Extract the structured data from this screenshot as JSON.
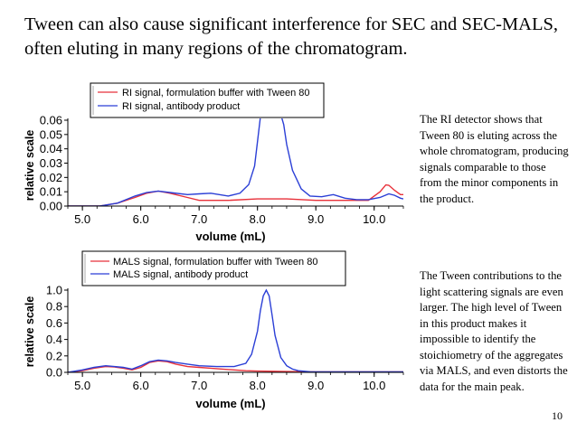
{
  "slide": {
    "title": "Tween can also cause significant interference for SEC and SEC-MALS, often eluting in many regions of the chromatogram.",
    "page_number": "10"
  },
  "notes": {
    "ri": "The RI detector shows that Tween 80 is eluting across the whole chromatogram, producing signals comparable to those from the minor components in the product.",
    "mals": "The Tween contributions to the light scattering signals are even larger. The high level of Tween in this product makes it impossible to identify the stoichiometry of the aggregates via MALS, and even distorts the data for the main peak."
  },
  "colors": {
    "red": "#e8313a",
    "blue": "#2b3fd6",
    "axis": "#000000"
  },
  "chart_data": [
    {
      "id": "ri",
      "type": "line",
      "title": "",
      "xlabel": "volume (mL)",
      "ylabel": "relative scale",
      "xlim": [
        4.75,
        10.5
      ],
      "ylim": [
        0,
        0.06
      ],
      "xticks": [
        5.0,
        6.0,
        7.0,
        8.0,
        9.0,
        10.0
      ],
      "xtick_labels": [
        "5.0",
        "6.0",
        "7.0",
        "8.0",
        "9.0",
        "10.0"
      ],
      "yticks": [
        0,
        0.01,
        0.02,
        0.03,
        0.04,
        0.05,
        0.06
      ],
      "ytick_labels": [
        "0.00",
        "0.01",
        "0.02",
        "0.03",
        "0.04",
        "0.05",
        "0.06"
      ],
      "legend_position": "top",
      "series": [
        {
          "name": "RI signal, formulation buffer with Tween 80",
          "color": "red",
          "x": [
            4.75,
            5.3,
            5.6,
            5.9,
            6.1,
            6.3,
            6.5,
            6.8,
            7.0,
            7.5,
            8.0,
            8.5,
            9.0,
            9.5,
            9.9,
            10.1,
            10.2,
            10.25,
            10.35,
            10.45,
            10.5
          ],
          "y": [
            0.0,
            0.0,
            0.002,
            0.006,
            0.009,
            0.0105,
            0.009,
            0.006,
            0.004,
            0.004,
            0.005,
            0.005,
            0.004,
            0.004,
            0.004,
            0.01,
            0.0148,
            0.0145,
            0.011,
            0.008,
            0.008
          ]
        },
        {
          "name": "RI signal, antibody product",
          "color": "blue",
          "x": [
            4.75,
            5.3,
            5.6,
            5.9,
            6.1,
            6.3,
            6.5,
            6.8,
            7.0,
            7.2,
            7.5,
            7.7,
            7.85,
            7.95,
            8.0,
            8.05,
            8.1,
            8.3,
            8.4,
            8.45,
            8.5,
            8.6,
            8.75,
            8.9,
            9.1,
            9.3,
            9.5,
            9.7,
            9.9,
            10.1,
            10.25,
            10.35,
            10.45,
            10.5
          ],
          "y": [
            0.0,
            0.0,
            0.002,
            0.007,
            0.0095,
            0.0105,
            0.0095,
            0.008,
            0.0085,
            0.009,
            0.007,
            0.009,
            0.015,
            0.028,
            0.045,
            0.062,
            0.066,
            0.066,
            0.064,
            0.057,
            0.043,
            0.025,
            0.012,
            0.007,
            0.0065,
            0.008,
            0.0055,
            0.0045,
            0.0045,
            0.006,
            0.0085,
            0.0075,
            0.0055,
            0.005
          ]
        }
      ]
    },
    {
      "id": "mals",
      "type": "line",
      "title": "",
      "xlabel": "volume (mL)",
      "ylabel": "relative scale",
      "xlim": [
        4.75,
        10.5
      ],
      "ylim": [
        0,
        1.0
      ],
      "xticks": [
        5.0,
        6.0,
        7.0,
        8.0,
        9.0,
        10.0
      ],
      "xtick_labels": [
        "5.0",
        "6.0",
        "7.0",
        "8.0",
        "9.0",
        "10.0"
      ],
      "yticks": [
        0,
        0.2,
        0.4,
        0.6,
        0.8,
        1.0
      ],
      "ytick_labels": [
        "0.0",
        "0.2",
        "0.4",
        "0.6",
        "0.8",
        "1.0"
      ],
      "legend_position": "top",
      "series": [
        {
          "name": "MALS signal, formulation buffer with Tween 80",
          "color": "red",
          "x": [
            4.75,
            5.0,
            5.2,
            5.4,
            5.55,
            5.7,
            5.85,
            6.0,
            6.15,
            6.3,
            6.45,
            6.6,
            6.8,
            7.0,
            7.2,
            7.4,
            7.6,
            7.8,
            8.0,
            8.5,
            9.0,
            9.5,
            10.0,
            10.5
          ],
          "y": [
            0.0,
            0.02,
            0.05,
            0.07,
            0.065,
            0.05,
            0.03,
            0.06,
            0.12,
            0.14,
            0.13,
            0.1,
            0.07,
            0.06,
            0.05,
            0.04,
            0.03,
            0.02,
            0.015,
            0.01,
            0.005,
            0.005,
            0.005,
            0.005
          ]
        },
        {
          "name": "MALS signal, antibody product",
          "color": "blue",
          "x": [
            4.75,
            5.0,
            5.2,
            5.4,
            5.55,
            5.7,
            5.85,
            6.0,
            6.15,
            6.3,
            6.45,
            6.6,
            6.8,
            7.0,
            7.3,
            7.6,
            7.8,
            7.9,
            8.0,
            8.05,
            8.1,
            8.15,
            8.2,
            8.25,
            8.3,
            8.4,
            8.5,
            8.6,
            8.7,
            8.9,
            9.0,
            9.5,
            10.0,
            10.5
          ],
          "y": [
            0.0,
            0.03,
            0.06,
            0.08,
            0.07,
            0.06,
            0.04,
            0.08,
            0.13,
            0.15,
            0.14,
            0.12,
            0.1,
            0.08,
            0.07,
            0.07,
            0.11,
            0.22,
            0.5,
            0.75,
            0.93,
            1.0,
            0.93,
            0.7,
            0.45,
            0.18,
            0.08,
            0.04,
            0.02,
            0.008,
            0.005,
            0.005,
            0.005,
            0.005
          ]
        }
      ]
    }
  ]
}
